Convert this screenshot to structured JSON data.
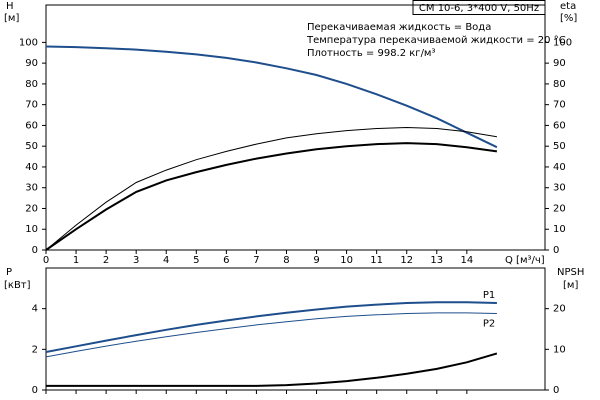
{
  "chart_data": [
    {
      "type": "line",
      "ylabel": "H",
      "yunit": "[м]",
      "y2label": "eta",
      "y2unit": "[%]",
      "xlabel": "Q [м³/ч]",
      "info": "CM 10-6, 3*400 V, 50Hz",
      "annotations": [
        "Перекачиваемая жидкость = Вода",
        "Температура перекачиваемой жидкости = 20 °C",
        "Плотность = 998.2 кг/м³"
      ],
      "x": [
        0,
        1,
        2,
        3,
        4,
        5,
        6,
        7,
        8,
        9,
        10,
        11,
        12,
        13,
        14,
        15
      ],
      "xlim": [
        0,
        16.6
      ],
      "xticks": [
        0,
        1,
        2,
        3,
        4,
        5,
        6,
        7,
        8,
        9,
        10,
        11,
        12,
        13,
        14
      ],
      "ylim": [
        0,
        118
      ],
      "yticks": [
        0,
        10,
        20,
        30,
        40,
        50,
        60,
        70,
        80,
        90,
        100
      ],
      "y2lim": [
        0,
        118
      ],
      "y2ticks": [
        0,
        10,
        20,
        30,
        40,
        50,
        60,
        70,
        80,
        90,
        100
      ],
      "series": [
        {
          "color": "#1f4e8c",
          "linewidth": 2,
          "values": [
            98,
            97.7,
            97.2,
            96.5,
            95.5,
            94.2,
            92.5,
            90.3,
            87.5,
            84.3,
            80,
            75,
            69.5,
            63.5,
            56.5,
            49.5
          ]
        },
        {
          "color": "#000000",
          "linewidth": 1,
          "axis": "y2",
          "values": [
            0,
            12,
            23,
            32.5,
            38.5,
            43.5,
            47.5,
            51,
            54,
            56,
            57.5,
            58.5,
            59,
            58.5,
            57,
            54.5
          ]
        },
        {
          "color": "#000000",
          "linewidth": 2,
          "axis": "y2",
          "values": [
            0,
            10,
            19.5,
            28,
            33.5,
            37.5,
            41,
            44,
            46.5,
            48.5,
            50,
            51,
            51.5,
            51,
            49.5,
            47.5
          ]
        }
      ]
    },
    {
      "type": "line",
      "ylabel": "P",
      "yunit": "[кВт]",
      "y2label": "NPSH",
      "y2unit": "[м]",
      "x": [
        0,
        1,
        2,
        3,
        4,
        5,
        6,
        7,
        8,
        9,
        10,
        11,
        12,
        13,
        14,
        15
      ],
      "xlim": [
        0,
        16.6
      ],
      "ylim": [
        0,
        6
      ],
      "yticks": [
        0,
        2,
        4
      ],
      "y2lim": [
        0,
        30
      ],
      "y2ticks": [
        0,
        10,
        20
      ],
      "series": [
        {
          "name": "P1",
          "color": "#1f4e8c",
          "linewidth": 2,
          "values": [
            1.87,
            2.15,
            2.43,
            2.7,
            2.96,
            3.2,
            3.42,
            3.62,
            3.8,
            3.96,
            4.1,
            4.2,
            4.28,
            4.32,
            4.32,
            4.28
          ]
        },
        {
          "name": "P2",
          "color": "#1f4e8c",
          "linewidth": 1,
          "values": [
            1.63,
            1.9,
            2.16,
            2.4,
            2.62,
            2.83,
            3.02,
            3.2,
            3.36,
            3.5,
            3.62,
            3.7,
            3.76,
            3.79,
            3.79,
            3.76
          ]
        },
        {
          "color": "#000000",
          "linewidth": 2,
          "axis": "y2",
          "values": [
            1,
            1,
            1,
            1,
            1,
            1,
            1,
            1,
            1.2,
            1.6,
            2.2,
            3,
            4,
            5.2,
            6.8,
            9
          ]
        }
      ]
    }
  ]
}
